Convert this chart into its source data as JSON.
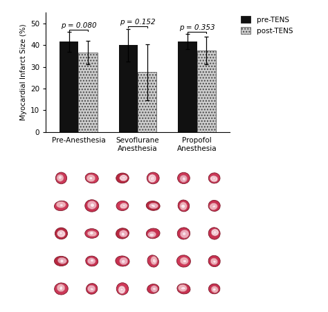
{
  "groups": [
    "Pre-Anesthesia",
    "Sevoflurane\nAnesthesia",
    "Propofol\nAnesthesia"
  ],
  "pre_tens_values": [
    41.5,
    40.0,
    41.5
  ],
  "post_tens_values": [
    36.5,
    27.5,
    37.5
  ],
  "pre_tens_errors": [
    4.5,
    7.5,
    3.5
  ],
  "post_tens_errors": [
    5.5,
    13.0,
    6.5
  ],
  "p_values": [
    "p = 0.080",
    "p = 0.152",
    "p = 0.353"
  ],
  "ylim": [
    0,
    55
  ],
  "yticks": [
    0,
    10,
    20,
    30,
    40,
    50
  ],
  "ylabel": "Myocardial Infarct Size (%)",
  "bar_width": 0.32,
  "pre_color": "#111111",
  "post_color": "#cccccc",
  "legend_pre": "pre-TENS",
  "legend_post": "post-TENS",
  "background_color": "#ffffff",
  "axis_fontsize": 7.5,
  "tick_fontsize": 7.5,
  "legend_fontsize": 7.5,
  "p_fontsize": 7.5,
  "n_tissue_rows": 5,
  "n_tissue_cols": 6
}
